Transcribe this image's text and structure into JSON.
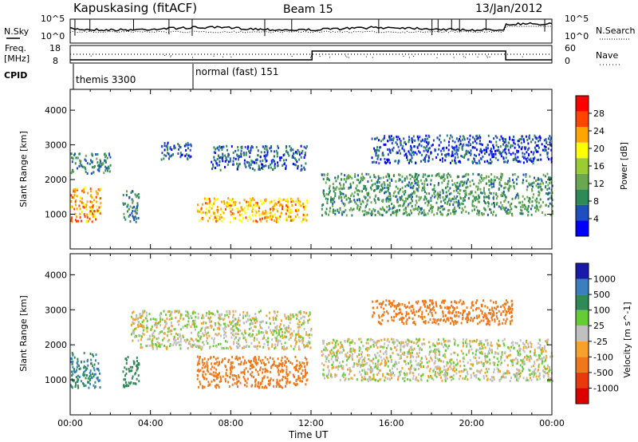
{
  "header": {
    "station": "Kapuskasing (fitACF)",
    "beam": "Beam 15",
    "date": "13/Jan/2012"
  },
  "noise_panel": {
    "left_label": "N.Sky",
    "right_label": "N.Search",
    "left_ticks": [
      "10^5",
      "10^0"
    ],
    "right_ticks": [
      "10^5",
      "10^0"
    ]
  },
  "freq_panel": {
    "left_label_1": "Freq.",
    "left_label_2": "[MHz]",
    "right_label": "Nave",
    "left_ticks": [
      "18",
      "8"
    ],
    "right_ticks": [
      "60",
      "0"
    ]
  },
  "cpid": {
    "label": "CPID",
    "segments": [
      {
        "name": "themis 3300",
        "start_hour": 0
      },
      {
        "name": "normal (fast) 151",
        "start_hour": 6
      }
    ]
  },
  "colors": {
    "power_scale": [
      "#0000ff",
      "#1f4fbf",
      "#2e8b57",
      "#6aa84f",
      "#9acd32",
      "#ffff00",
      "#ffa500",
      "#ff4500",
      "#ff0000"
    ],
    "velocity_scale": [
      "#1a1aaa",
      "#3a7fc0",
      "#2e8b57",
      "#66cc33",
      "#c0c0c0",
      "#f7a02a",
      "#f07818",
      "#e83a0c",
      "#dd0000"
    ]
  },
  "chart_data": [
    {
      "type": "heatmap",
      "title": "Power",
      "xlabel": "",
      "ylabel": "Slant Range [km]",
      "x_range_hours": [
        0,
        24
      ],
      "xlim": [
        "00:00",
        "00:00"
      ],
      "ylim": [
        0,
        4600
      ],
      "y_ticks": [
        1000,
        2000,
        3000,
        4000
      ],
      "colorbar": {
        "label": "Power [dB]",
        "ticks": [
          4,
          8,
          12,
          16,
          20,
          24,
          28
        ],
        "range": [
          0,
          32
        ]
      },
      "features": [
        {
          "start_hour": 0.0,
          "end_hour": 1.5,
          "range_km": [
            800,
            1800
          ],
          "value": 24
        },
        {
          "start_hour": 0.0,
          "end_hour": 2.0,
          "range_km": [
            2200,
            2800
          ],
          "value": 8
        },
        {
          "start_hour": 2.6,
          "end_hour": 3.4,
          "range_km": [
            800,
            1700
          ],
          "value": 8
        },
        {
          "start_hour": 4.5,
          "end_hour": 6.0,
          "range_km": [
            2600,
            3100
          ],
          "value": 6
        },
        {
          "start_hour": 6.3,
          "end_hour": 11.8,
          "range_km": [
            800,
            1500
          ],
          "value": 22
        },
        {
          "start_hour": 7.0,
          "end_hour": 11.8,
          "range_km": [
            2300,
            3000
          ],
          "value": 6
        },
        {
          "start_hour": 12.5,
          "end_hour": 24.0,
          "range_km": [
            1000,
            2200
          ],
          "value": 10
        },
        {
          "start_hour": 15.0,
          "end_hour": 24.0,
          "range_km": [
            2500,
            3300
          ],
          "value": 5
        }
      ]
    },
    {
      "type": "heatmap",
      "title": "Velocity",
      "xlabel": "Time UT",
      "ylabel": "Slant Range [km]",
      "x_range_hours": [
        0,
        24
      ],
      "x_ticks": [
        "00:00",
        "04:00",
        "08:00",
        "12:00",
        "16:00",
        "20:00",
        "00:00"
      ],
      "ylim": [
        0,
        4600
      ],
      "y_ticks": [
        1000,
        2000,
        3000,
        4000
      ],
      "colorbar": {
        "label": "Velocity [m s^-1]",
        "ticks": [
          "1000",
          "500",
          "100",
          "25",
          "-25",
          "-100",
          "-500",
          "-1000"
        ]
      },
      "features": [
        {
          "start_hour": 0.0,
          "end_hour": 1.5,
          "range_km": [
            800,
            1800
          ],
          "value": 300
        },
        {
          "start_hour": 2.6,
          "end_hour": 3.4,
          "range_km": [
            800,
            1700
          ],
          "value": 200
        },
        {
          "start_hour": 3.0,
          "end_hour": 12.0,
          "range_km": [
            1900,
            3000
          ],
          "value": 0
        },
        {
          "start_hour": 6.3,
          "end_hour": 11.8,
          "range_km": [
            800,
            1700
          ],
          "value": -150
        },
        {
          "start_hour": 12.5,
          "end_hour": 24.0,
          "range_km": [
            1000,
            2200
          ],
          "value": 0
        },
        {
          "start_hour": 15.0,
          "end_hour": 22.0,
          "range_km": [
            2600,
            3300
          ],
          "value": -200
        }
      ]
    }
  ]
}
